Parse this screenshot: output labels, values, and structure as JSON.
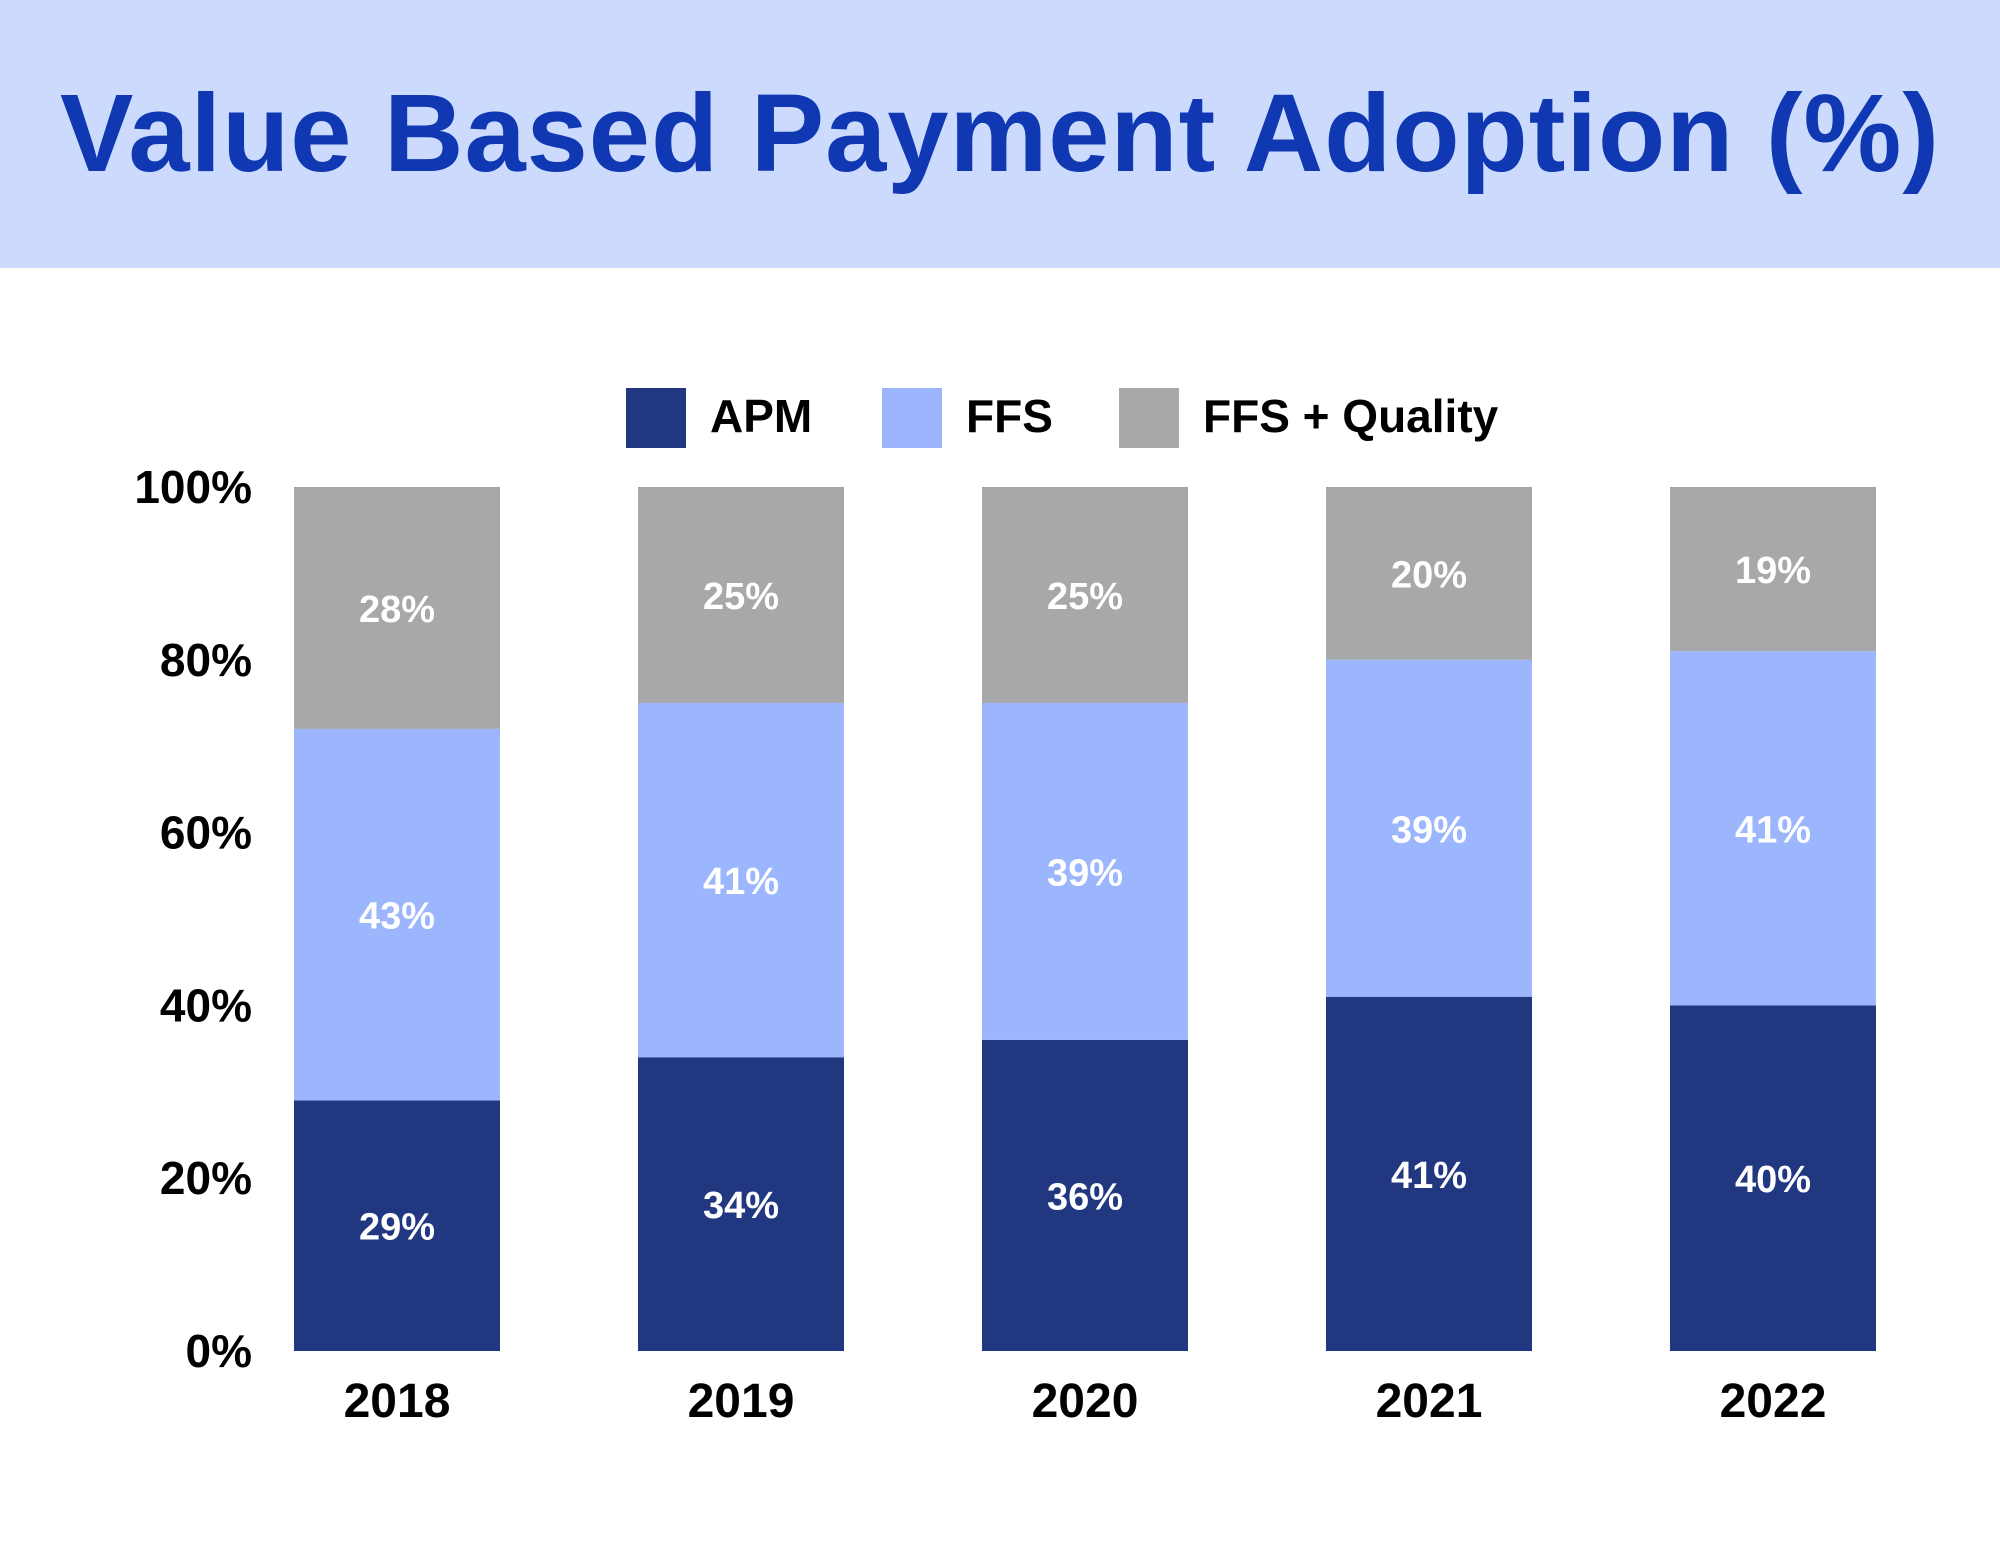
{
  "title": "Value Based Payment Adoption (%)",
  "chart_data": {
    "type": "bar",
    "stacked": true,
    "title": "Value Based Payment Adoption (%)",
    "categories": [
      "2018",
      "2019",
      "2020",
      "2021",
      "2022"
    ],
    "series": [
      {
        "name": "APM",
        "values": [
          29,
          34,
          36,
          41,
          40
        ],
        "color": "#213881"
      },
      {
        "name": "FFS",
        "values": [
          43,
          41,
          39,
          39,
          41
        ],
        "color": "#9bb6fd"
      },
      {
        "name": "FFS + Quality",
        "values": [
          28,
          25,
          25,
          20,
          19
        ],
        "color": "#a7a8aa"
      }
    ],
    "yticks": [
      "0%",
      "20%",
      "40%",
      "60%",
      "80%",
      "100%"
    ],
    "ylim": [
      0,
      100
    ],
    "ytick_values": [
      0,
      20,
      40,
      60,
      80,
      100
    ],
    "legend_position": "top-center",
    "grid": false,
    "label_color": "#ffffff"
  }
}
